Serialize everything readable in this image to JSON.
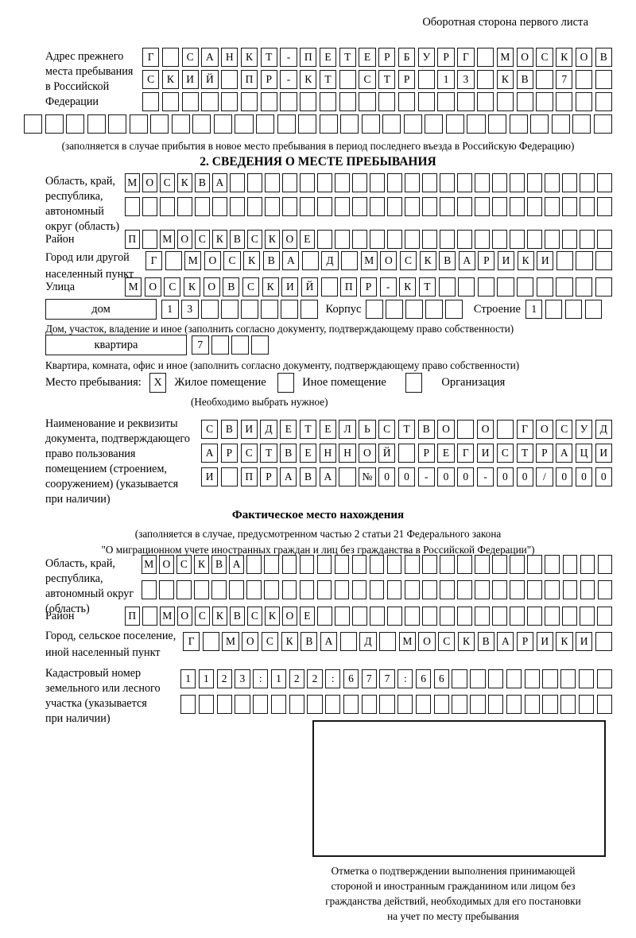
{
  "ink_color": "#161616",
  "header": {
    "back_note": "Оборотная сторона первого листа"
  },
  "prev_address": {
    "label_lines": [
      "Адрес прежнего",
      "места пребывания",
      "в Российской",
      "Федерации"
    ],
    "rows": [
      {
        "len": 24,
        "text": "Г САНКТ-ПЕТЕРБУРГ МОСКОВ"
      },
      {
        "len": 24,
        "text": "СКИЙ ПР-КТ СТР 13 КВ 7"
      },
      {
        "len": 24,
        "text": ""
      },
      {
        "len": 28,
        "text": ""
      }
    ],
    "note": "(заполняется в случае прибытия в новое место пребывания в период последнего въезда в Российскую Федерацию)"
  },
  "section2": {
    "title": "2. СВЕДЕНИЯ О МЕСТЕ ПРЕБЫВАНИЯ",
    "oblast": {
      "label_lines": [
        "Область, край,",
        "республика,",
        "автономный",
        "округ (область)"
      ],
      "rows": [
        {
          "len": 28,
          "text": "МОСКВА"
        },
        {
          "len": 28,
          "text": ""
        }
      ]
    },
    "rayon": {
      "label": "Район",
      "row": {
        "len": 28,
        "text": "П МОСКВСКОЕ"
      }
    },
    "gorod": {
      "label_lines": [
        "Город или другой",
        "населенный пункт"
      ],
      "row": {
        "len": 24,
        "text": "Г МОСКВА Д МОСКВАРИКИ"
      }
    },
    "ulitsa": {
      "label": "Улица",
      "row": {
        "len": 25,
        "text": "МОСКОВСКИЙ ПР-КТ"
      }
    },
    "dom": {
      "box_label": "дом",
      "cells": {
        "len": 8,
        "text": "13"
      },
      "korpus_label": "Корпус",
      "korpus_cells": {
        "len": 5,
        "text": ""
      },
      "stroenie_label": "Строение",
      "stroenie_cells": {
        "len": 4,
        "text": "1"
      },
      "note": "Дом, участок, владение и иное (заполнить согласно документу, подтверждающему право собственности)"
    },
    "kvartira": {
      "box_label": "квартира",
      "cells": {
        "len": 4,
        "text": "7"
      },
      "note": "Квартира, комната, офис и иное (заполнить согласно документу, подтверждающему право собственности)"
    },
    "stay": {
      "label": "Место пребывания:",
      "options": [
        {
          "label": "Жилое помещение",
          "mark": "X"
        },
        {
          "label": "Иное помещение",
          "mark": ""
        },
        {
          "label": "Организация",
          "mark": ""
        }
      ],
      "note": "(Необходимо выбрать нужное)"
    },
    "doc": {
      "label_lines": [
        "Наименование и реквизиты",
        "документа, подтверждающего",
        "право пользования",
        "помещением (строением,",
        "сооружением) (указывается",
        "при наличии)"
      ],
      "rows": [
        {
          "len": 21,
          "text": "СВИДЕТЕЛЬСТВО О ГОСУД"
        },
        {
          "len": 21,
          "text": "АРСТВЕННОЙ РЕГИСТРАЦИ"
        },
        {
          "len": 21,
          "text": "И ПРАВА №00-00-00/000"
        }
      ]
    }
  },
  "fact": {
    "title": "Фактическое место нахождения",
    "note_lines": [
      "(заполняется в случае, предусмотренном частью 2 статьи 21 Федерального закона",
      "\"О миграционном учете иностранных граждан и лиц без гражданства в Российской Федерации\")"
    ],
    "oblast": {
      "label_lines": [
        "Область, край,",
        "республика,",
        "автономный округ",
        "(область)"
      ],
      "rows": [
        {
          "len": 27,
          "text": "МОСКВА"
        },
        {
          "len": 27,
          "text": ""
        }
      ]
    },
    "rayon": {
      "label": "Район",
      "row": {
        "len": 28,
        "text": "П МОСКВСКОЕ"
      }
    },
    "gorod": {
      "label_lines": [
        "Город, сельское поселение,",
        "иной населенный пункт"
      ],
      "row": {
        "len": 22,
        "text": "Г МОСКВА Д МОСКВАРИКИ"
      }
    },
    "kadastr": {
      "label_lines": [
        "Кадастровый номер",
        "земельного или лесного",
        "участка (указывается",
        "при наличии)"
      ],
      "rows": [
        {
          "len": 24,
          "text": "1123:122:677:66"
        },
        {
          "len": 24,
          "text": ""
        }
      ]
    },
    "stamp_caption_lines": [
      "Отметка о подтверждении выполнения принимающей",
      "стороной и иностранным гражданином или лицом без",
      "гражданства действий, необходимых для его постановки",
      "на учет по месту пребывания"
    ]
  }
}
